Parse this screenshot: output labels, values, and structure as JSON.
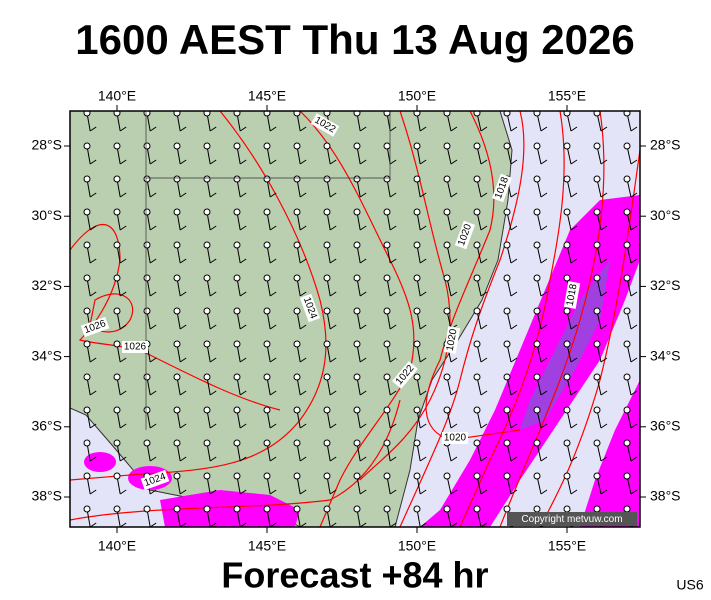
{
  "header": {
    "title": "1600 AEST Thu 13 Aug 2026"
  },
  "map": {
    "longitude_labels": [
      "140°E",
      "145°E",
      "150°E",
      "155°E"
    ],
    "latitude_labels": [
      "28°S",
      "30°S",
      "32°S",
      "34°S",
      "36°S",
      "38°S"
    ],
    "isobar_labels": [
      "1022",
      "1018",
      "1020",
      "1018",
      "1026",
      "1026",
      "1024",
      "1020",
      "1022",
      "1020",
      "1024"
    ],
    "copyright": "Copyright metvuw.com"
  },
  "footer": {
    "forecast": "Forecast +84 hr",
    "code": "US6"
  }
}
